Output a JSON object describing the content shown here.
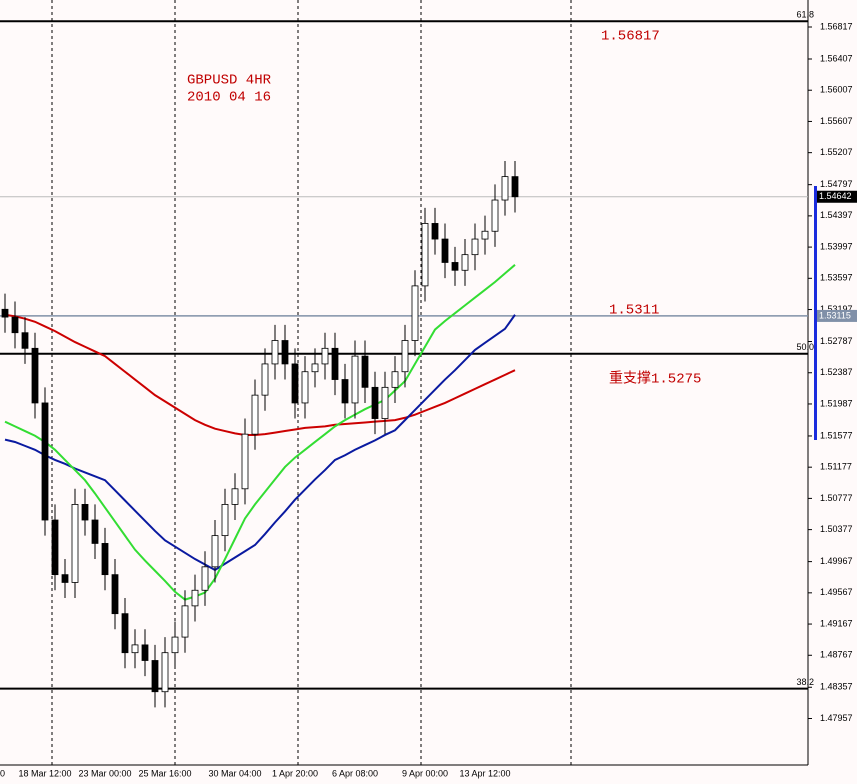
{
  "chart_data": {
    "type": "candlestick",
    "annotations": [
      "GBPUSD 4HR",
      "2010 04 16",
      "1.56817",
      "1.5311",
      "重支撑1.5275"
    ],
    "categories": [
      "0",
      null,
      null,
      null,
      "18 Mar 12:00",
      null,
      null,
      null,
      null,
      null,
      "23 Mar 00:00",
      null,
      null,
      null,
      null,
      null,
      "25 Mar 16:00",
      null,
      null,
      null,
      null,
      null,
      null,
      "30 Mar 04:00",
      null,
      null,
      null,
      null,
      null,
      "1 Apr 20:00",
      null,
      null,
      null,
      null,
      null,
      "6 Apr 08:00",
      null,
      null,
      null,
      null,
      null,
      null,
      "9 Apr 00:00",
      null,
      null,
      null,
      null,
      null,
      "13 Apr 12:00",
      null,
      null,
      null
    ],
    "open": [
      1.532,
      1.531,
      1.529,
      1.527,
      1.52,
      1.505,
      1.498,
      1.497,
      1.507,
      1.505,
      1.502,
      1.498,
      1.493,
      1.488,
      1.489,
      1.487,
      1.483,
      1.488,
      1.49,
      1.494,
      1.496,
      1.499,
      1.503,
      1.507,
      1.509,
      1.516,
      1.521,
      1.525,
      1.528,
      1.525,
      1.52,
      1.524,
      1.525,
      1.527,
      1.523,
      1.52,
      1.526,
      1.522,
      1.518,
      1.522,
      1.524,
      1.528,
      1.535,
      1.543,
      1.541,
      1.538,
      1.537,
      1.539,
      1.541,
      1.542,
      1.546,
      1.549
    ],
    "high": [
      1.534,
      1.533,
      1.531,
      1.529,
      1.522,
      1.507,
      1.5,
      1.509,
      1.509,
      1.507,
      1.504,
      1.5,
      1.495,
      1.491,
      1.491,
      1.489,
      1.49,
      1.492,
      1.496,
      1.498,
      1.501,
      1.505,
      1.509,
      1.511,
      1.518,
      1.523,
      1.527,
      1.53,
      1.53,
      1.527,
      1.526,
      1.527,
      1.529,
      1.529,
      1.525,
      1.528,
      1.528,
      1.524,
      1.524,
      1.526,
      1.53,
      1.537,
      1.545,
      1.545,
      1.543,
      1.54,
      1.541,
      1.543,
      1.544,
      1.548,
      1.551,
      1.551
    ],
    "low": [
      1.529,
      1.527,
      1.525,
      1.518,
      1.503,
      1.496,
      1.495,
      1.495,
      1.503,
      1.5,
      1.496,
      1.491,
      1.486,
      1.486,
      1.485,
      1.481,
      1.481,
      1.486,
      1.488,
      1.492,
      1.494,
      1.497,
      1.501,
      1.505,
      1.507,
      1.514,
      1.519,
      1.523,
      1.523,
      1.518,
      1.518,
      1.522,
      1.523,
      1.521,
      1.518,
      1.518,
      1.52,
      1.516,
      1.516,
      1.52,
      1.522,
      1.526,
      1.533,
      1.539,
      1.536,
      1.535,
      1.535,
      1.537,
      1.539,
      1.54,
      1.544,
      1.5444
    ],
    "close": [
      1.531,
      1.529,
      1.527,
      1.52,
      1.505,
      1.498,
      1.497,
      1.507,
      1.505,
      1.502,
      1.498,
      1.493,
      1.488,
      1.489,
      1.487,
      1.483,
      1.488,
      1.49,
      1.494,
      1.496,
      1.499,
      1.503,
      1.507,
      1.509,
      1.516,
      1.521,
      1.525,
      1.528,
      1.525,
      1.52,
      1.524,
      1.525,
      1.527,
      1.523,
      1.52,
      1.526,
      1.522,
      1.518,
      1.522,
      1.524,
      1.528,
      1.535,
      1.543,
      1.541,
      1.538,
      1.537,
      1.539,
      1.541,
      1.542,
      1.546,
      1.549,
      1.54642
    ],
    "series": [
      {
        "color": "#cc0000",
        "values": [
          1.5313,
          1.5311,
          1.5308,
          1.5304,
          1.5298,
          1.5292,
          1.5285,
          1.5278,
          1.5272,
          1.5266,
          1.526,
          1.525,
          1.524,
          1.523,
          1.522,
          1.521,
          1.5202,
          1.5194,
          1.5186,
          1.5178,
          1.5172,
          1.5167,
          1.5164,
          1.5161,
          1.5159,
          1.5159,
          1.516,
          1.5162,
          1.5164,
          1.5166,
          1.5168,
          1.5169,
          1.517,
          1.5172,
          1.5173,
          1.5174,
          1.5175,
          1.5176,
          1.5177,
          1.5178,
          1.5181,
          1.5185,
          1.519,
          1.5195,
          1.52,
          1.5206,
          1.5212,
          1.5218,
          1.5224,
          1.523,
          1.5236,
          1.5242
        ]
      },
      {
        "color": "#0a1aa0",
        "values": [
          1.5153,
          1.515,
          1.5145,
          1.514,
          1.5133,
          1.5127,
          1.5122,
          1.5116,
          1.5111,
          1.5106,
          1.5101,
          1.5088,
          1.5075,
          1.5062,
          1.5049,
          1.5036,
          1.5024,
          1.5016,
          1.5008,
          1.5,
          1.4993,
          1.4986,
          1.4994,
          1.5002,
          1.501,
          1.5018,
          1.5032,
          1.5047,
          1.5061,
          1.5076,
          1.5089,
          1.5102,
          1.5114,
          1.5127,
          1.5133,
          1.514,
          1.5146,
          1.5152,
          1.5159,
          1.5165,
          1.5178,
          1.5191,
          1.5204,
          1.5217,
          1.523,
          1.5242,
          1.5255,
          1.5268,
          1.5277,
          1.5286,
          1.5295,
          1.5313
        ]
      },
      {
        "color": "#33dd33",
        "values": [
          1.5176,
          1.517,
          1.5164,
          1.5158,
          1.515,
          1.514,
          1.5127,
          1.5114,
          1.5101,
          1.5084,
          1.5066,
          1.5048,
          1.503,
          1.5012,
          1.4998,
          1.4985,
          1.4972,
          1.4958,
          1.4948,
          1.4952,
          1.4957,
          1.4975,
          1.5,
          1.5026,
          1.5052,
          1.507,
          1.5086,
          1.5102,
          1.5118,
          1.513,
          1.514,
          1.515,
          1.516,
          1.517,
          1.5178,
          1.5185,
          1.5192,
          1.5198,
          1.5204,
          1.5216,
          1.5228,
          1.525,
          1.5272,
          1.5294,
          1.5305,
          1.5315,
          1.5325,
          1.5335,
          1.5345,
          1.5355,
          1.5366,
          1.5377
        ]
      }
    ],
    "levels": [
      {
        "value": 1.5689,
        "label": "61.8"
      },
      {
        "value": 1.5263,
        "label": "50.0"
      },
      {
        "value": 1.4834,
        "label": "38.2"
      }
    ],
    "price_line": {
      "value": 1.54642,
      "label": "1.54642"
    },
    "level_line": {
      "value": 1.53115,
      "label": "1.53115"
    },
    "ylim": [
      1.47361,
      1.57163
    ],
    "yticks": [
      1.56817,
      1.56407,
      1.56007,
      1.55607,
      1.55207,
      1.54797,
      1.54397,
      1.53997,
      1.53597,
      1.53197,
      1.52787,
      1.52387,
      1.51987,
      1.51577,
      1.51177,
      1.50777,
      1.50377,
      1.49967,
      1.49567,
      1.49167,
      1.48767,
      1.48357,
      1.47957
    ]
  }
}
